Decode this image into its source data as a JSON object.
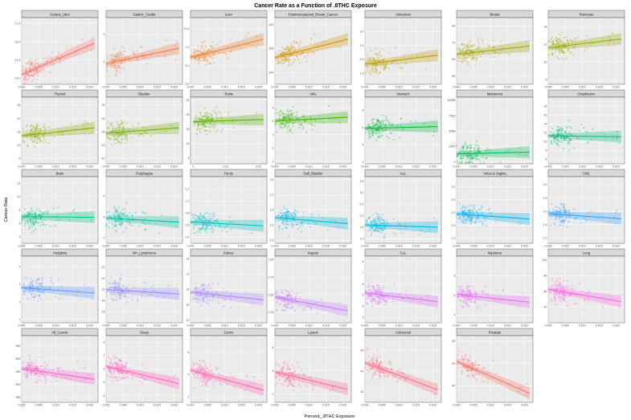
{
  "chart_data": {
    "type": "scatter",
    "title": "Cancer Rate as a Function of .8THC Exposure",
    "xlabel": "Percent_.8THC Exposure",
    "ylabel": "Cancer Rate",
    "grid": true,
    "panels": [
      {
        "name": "Corpus_Uteri",
        "color": "#F8766D",
        "xlim": [
          0,
          0.0225
        ],
        "xticks": [
          "0.000",
          "0.005",
          "0.010",
          "0.015",
          "0.020"
        ],
        "ylim": [
          12.5,
          18
        ],
        "yticks": [
          13,
          14.5,
          16,
          17.5
        ],
        "yticklabels": [
          "13.0",
          "14.5",
          "16.0",
          "17.5"
        ],
        "fit": [
          13.3,
          15.9
        ]
      },
      {
        "name": "Gastric_Cardia",
        "color": "#F27C4C",
        "xlim": [
          0,
          0.0225
        ],
        "xticks": [
          "0.000",
          "0.005",
          "0.010",
          "0.015",
          "0.020"
        ],
        "ylim": [
          1.2,
          3.6
        ],
        "yticks": [
          2,
          3
        ],
        "yticklabels": [
          "2",
          "3"
        ],
        "fit": [
          1.95,
          2.5
        ]
      },
      {
        "name": "Liver",
        "color": "#EA8331",
        "xlim": [
          0,
          0.0225
        ],
        "xticks": [
          "0.000",
          "0.005",
          "0.010",
          "0.015",
          "0.020"
        ],
        "ylim": [
          2.5,
          11.5
        ],
        "yticks": [
          2.5,
          5,
          7.5,
          10
        ],
        "yticklabels": [
          "2.5",
          "5.0",
          "7.5",
          "10.0"
        ],
        "fit": [
          6.1,
          8.6
        ]
      },
      {
        "name": "Postmenopausal_Breast_Cancer",
        "color": "#D89000",
        "xlim": [
          0,
          0.0225
        ],
        "xticks": [
          "0.000",
          "0.005",
          "0.010",
          "0.015",
          "0.020"
        ],
        "ylim": [
          150,
          430
        ],
        "yticks": [
          200,
          300,
          400
        ],
        "yticklabels": [
          "200",
          "300",
          "400"
        ],
        "fit": [
          262,
          340
        ]
      },
      {
        "name": "Atorectum",
        "color": "#C09B00",
        "xlim": [
          0,
          0.0225
        ],
        "xticks": [
          "0.000",
          "0.005",
          "0.010",
          "0.015",
          "0.020"
        ],
        "ylim": [
          1.1,
          3.5
        ],
        "yticks": [
          1.5,
          2,
          2.5,
          3
        ],
        "yticklabels": [
          "1.5",
          "2.0",
          "2.5",
          "3.0"
        ],
        "fit": [
          1.82,
          2.15
        ]
      },
      {
        "name": "Breast",
        "color": "#A3A500",
        "xlim": [
          0,
          0.0225
        ],
        "xticks": [
          "0.000",
          "0.005",
          "0.010",
          "0.015",
          "0.020"
        ],
        "ylim": [
          45,
          85
        ],
        "yticks": [
          50,
          60,
          70,
          80
        ],
        "yticklabels": [
          "50",
          "60",
          "70",
          "80"
        ],
        "fit": [
          63,
          68
        ]
      },
      {
        "name": "Pancreas",
        "color": "#99A800",
        "xlim": [
          0,
          0.0225
        ],
        "xticks": [
          "0.000",
          "0.005",
          "0.010",
          "0.015",
          "0.020"
        ],
        "ylim": [
          7.5,
          15
        ],
        "yticks": [
          8,
          10,
          12,
          14
        ],
        "yticklabels": [
          "8",
          "10",
          "12",
          "14"
        ],
        "fit": [
          11.6,
          12.6
        ]
      },
      {
        "name": "Thyroid",
        "color": "#8EAB00",
        "xlim": [
          0,
          0.0225
        ],
        "xticks": [
          "0.000",
          "0.005",
          "0.010",
          "0.015",
          "0.020"
        ],
        "ylim": [
          3,
          28
        ],
        "yticks": [
          5,
          10,
          15,
          20,
          25
        ],
        "yticklabels": [
          "5",
          "10",
          "15",
          "20",
          "25"
        ],
        "fit": [
          13.5,
          16.5
        ]
      },
      {
        "name": "Bladder",
        "color": "#7CAE00",
        "xlim": [
          0,
          0.0225
        ],
        "xticks": [
          "0.000",
          "0.005",
          "0.010",
          "0.015",
          "0.020"
        ],
        "ylim": [
          8,
          33
        ],
        "yticks": [
          10,
          15,
          20,
          25,
          30
        ],
        "yticklabels": [
          "10",
          "15",
          "20",
          "25",
          "30"
        ],
        "fit": [
          19.5,
          21.5
        ]
      },
      {
        "name": "Testis",
        "color": "#5EB300",
        "xlim": [
          -0.0008,
          0.0225
        ],
        "xticks": [
          "0",
          "0.01",
          "0.02"
        ],
        "xtickvals": [
          0,
          0.01,
          0.02
        ],
        "ylim": [
          3,
          26
        ],
        "yticks": [
          5,
          10,
          15,
          20,
          25
        ],
        "yticklabels": [
          "5",
          "10",
          "15",
          "20",
          "25"
        ],
        "fit": [
          17.5,
          18.3
        ]
      },
      {
        "name": "AML",
        "color": "#39B600",
        "xlim": [
          0,
          0.0225
        ],
        "xticks": [
          "0.000",
          "0.005",
          "0.010",
          "0.015",
          "0.020"
        ],
        "ylim": [
          0.8,
          5.8
        ],
        "yticks": [
          1,
          2,
          3,
          4,
          5
        ],
        "yticklabels": [
          "1",
          "2",
          "3",
          "4",
          "5"
        ],
        "fit": [
          4.0,
          4.3
        ]
      },
      {
        "name": "Stomach",
        "color": "#00BA38",
        "xlim": [
          0,
          0.0225
        ],
        "xticks": [
          "0.000",
          "0.005",
          "0.010",
          "0.015",
          "0.020"
        ],
        "ylim": [
          1.8,
          9.5
        ],
        "yticks": [
          2,
          4,
          6,
          8
        ],
        "yticklabels": [
          "2",
          "4",
          "6",
          "8"
        ],
        "fit": [
          5.9,
          6.1
        ]
      },
      {
        "name": "Melanoma",
        "color": "#00BC56",
        "xlim": [
          0,
          0.0225
        ],
        "xticks": [
          "0.000",
          "0.005",
          "0.010",
          "0.015",
          "0.020"
        ],
        "ylim": [
          -300,
          10500
        ],
        "yticks": [
          0,
          2500,
          5000,
          7500,
          10000
        ],
        "yticklabels": [
          "0",
          "2500",
          "5000",
          "7500",
          "10000"
        ],
        "fit": [
          1300,
          1600
        ]
      },
      {
        "name": "Oropharynx",
        "color": "#00BF7D",
        "xlim": [
          0,
          0.0225
        ],
        "xticks": [
          "0.000",
          "0.005",
          "0.010",
          "0.015",
          "0.020"
        ],
        "ylim": [
          5,
          20
        ],
        "yticks": [
          6,
          8,
          10,
          12,
          14,
          16,
          18
        ],
        "yticklabels": [
          "6",
          "8",
          "10",
          "12",
          "14",
          "16",
          "18"
        ],
        "fit": [
          11.3,
          11.1
        ]
      },
      {
        "name": "Brain",
        "color": "#00C08B",
        "xlim": [
          0,
          0.0225
        ],
        "xticks": [
          "0.000",
          "0.005",
          "0.010",
          "0.015",
          "0.020"
        ],
        "ylim": [
          3,
          13
        ],
        "yticks": [
          4,
          6,
          8,
          10,
          12
        ],
        "yticklabels": [
          "4",
          "6",
          "8",
          "10",
          "12"
        ],
        "fit": [
          7.0,
          6.9
        ]
      },
      {
        "name": "Esophagus",
        "color": "#00C1A3",
        "xlim": [
          0,
          0.0225
        ],
        "xticks": [
          "0.000",
          "0.005",
          "0.010",
          "0.015",
          "0.020"
        ],
        "ylim": [
          1.5,
          7.8
        ],
        "yticks": [
          2,
          4,
          6
        ],
        "yticklabels": [
          "2",
          "4",
          "6"
        ],
        "fit": [
          3.9,
          3.5
        ]
      },
      {
        "name": "Penis",
        "color": "#00BFC4",
        "xlim": [
          0,
          0.0225
        ],
        "xticks": [
          "0.000",
          "0.005",
          "0.010",
          "0.015",
          "0.020"
        ],
        "ylim": [
          0.3,
          1.4
        ],
        "yticks": [
          0.4,
          0.6,
          0.8,
          1,
          1.2
        ],
        "yticklabels": [
          "0.4",
          "0.6",
          "0.8",
          "1.0",
          "1.2"
        ],
        "fit": [
          0.65,
          0.59
        ]
      },
      {
        "name": "Gall_Bladder",
        "color": "#00BBDA",
        "xlim": [
          0,
          0.0225
        ],
        "xticks": [
          "0.000",
          "0.005",
          "0.010",
          "0.015",
          "0.020"
        ],
        "ylim": [
          0.4,
          2.6
        ],
        "yticks": [
          0.5,
          1,
          1.5,
          2,
          2.5
        ],
        "yticklabels": [
          "0.5",
          "1.0",
          "1.5",
          "2.0",
          "2.5"
        ],
        "fit": [
          1.25,
          1.05
        ]
      },
      {
        "name": "ALL",
        "color": "#00B8E7",
        "xlim": [
          0,
          0.0225
        ],
        "xticks": [
          "0.000",
          "0.005",
          "0.010",
          "0.015",
          "0.020"
        ],
        "ylim": [
          0.8,
          3.7
        ],
        "yticks": [
          1,
          1.5,
          2,
          2.5,
          3,
          3.5
        ],
        "yticklabels": [
          "1.0",
          "1.5",
          "2.0",
          "2.5",
          "3.0",
          "3.5"
        ],
        "fit": [
          1.6,
          1.5
        ]
      },
      {
        "name": "Vulva & Vagina",
        "color": "#00B0F6",
        "xlim": [
          0,
          0.0225
        ],
        "xticks": [
          "0.000",
          "0.005",
          "0.010",
          "0.015",
          "0.020"
        ],
        "ylim": [
          0.8,
          3.4
        ],
        "yticks": [
          1,
          1.5,
          2,
          2.5,
          3
        ],
        "yticklabels": [
          "1.0",
          "1.5",
          "2.0",
          "2.5",
          "3.0"
        ],
        "fit": [
          1.95,
          1.75
        ]
      },
      {
        "name": "CML",
        "color": "#35A2FF",
        "xlim": [
          0,
          0.0225
        ],
        "xticks": [
          "0.000",
          "0.005",
          "0.010",
          "0.015",
          "0.020"
        ],
        "ylim": [
          0.8,
          3.3
        ],
        "yticks": [
          1,
          1.5,
          2,
          2.5,
          3
        ],
        "yticklabels": [
          "1.0",
          "1.5",
          "2.0",
          "2.5",
          "3.0"
        ],
        "fit": [
          1.92,
          1.72
        ]
      },
      {
        "name": "Hodgkins",
        "color": "#619CFF",
        "xlim": [
          0,
          0.0225
        ],
        "xticks": [
          "0.000",
          "0.005",
          "0.010",
          "0.015",
          "0.020"
        ],
        "ylim": [
          0.8,
          4.6
        ],
        "yticks": [
          1,
          2,
          3,
          4
        ],
        "yticklabels": [
          "1",
          "2",
          "3",
          "4"
        ],
        "fit": [
          2.8,
          2.5
        ]
      },
      {
        "name": "NH_Lymphoma",
        "color": "#9590FF",
        "xlim": [
          0,
          0.0225
        ],
        "xticks": [
          "0.000",
          "0.005",
          "0.010",
          "0.015",
          "0.020"
        ],
        "ylim": [
          12,
          24
        ],
        "yticks": [
          14,
          16,
          18,
          20,
          22
        ],
        "yticklabels": [
          "14",
          "16",
          "18",
          "20",
          "22"
        ],
        "fit": [
          18.0,
          17.2
        ]
      },
      {
        "name": "Kidney",
        "color": "#AD88FF",
        "xlim": [
          0,
          0.0225
        ],
        "xticks": [
          "0.000",
          "0.005",
          "0.010",
          "0.015",
          "0.020"
        ],
        "ylim": [
          11.5,
          24.5
        ],
        "yticks": [
          12,
          15,
          18,
          21,
          24
        ],
        "yticklabels": [
          "12",
          "15",
          "18",
          "21",
          "24"
        ],
        "fit": [
          17.5,
          16.0
        ]
      },
      {
        "name": "Kaposi",
        "color": "#C77CFF",
        "xlim": [
          0,
          0.0225
        ],
        "xticks": [
          "0.000",
          "0.005",
          "0.010",
          "0.015",
          "0.020"
        ],
        "ylim": [
          0.1,
          1.05
        ],
        "yticks": [
          0.25,
          0.5,
          0.75,
          1
        ],
        "yticklabels": [
          "0.25",
          "0.50",
          "0.75",
          "1.00"
        ],
        "fit": [
          0.47,
          0.27
        ]
      },
      {
        "name": "CLL",
        "color": "#DC71FA",
        "xlim": [
          0,
          0.0225
        ],
        "xticks": [
          "0.000",
          "0.005",
          "0.010",
          "0.015",
          "0.020"
        ],
        "ylim": [
          2.5,
          8.5
        ],
        "yticks": [
          3,
          4,
          5,
          6,
          7,
          8
        ],
        "yticklabels": [
          "3",
          "4",
          "5",
          "6",
          "7",
          "8"
        ],
        "fit": [
          5.2,
          4.4
        ]
      },
      {
        "name": "Myeloma",
        "color": "#E76BF3",
        "xlim": [
          0,
          0.0225
        ],
        "xticks": [
          "0.000",
          "0.005",
          "0.010",
          "0.015",
          "0.020"
        ],
        "ylim": [
          3.2,
          10
        ],
        "yticks": [
          4,
          6,
          8
        ],
        "yticklabels": [
          "4",
          "6",
          "8"
        ],
        "fit": [
          6.1,
          5.3
        ]
      },
      {
        "name": "Lung",
        "color": "#F564E3",
        "xlim": [
          0,
          0.0225
        ],
        "xticks": [
          "0.000",
          "0.005",
          "0.010",
          "0.015",
          "0.020"
        ],
        "ylim": [
          20,
          105
        ],
        "yticks": [
          40,
          60,
          80,
          100
        ],
        "yticklabels": [
          "40",
          "60",
          "80",
          "100"
        ],
        "fit": [
          63,
          47
        ]
      },
      {
        "name": "All_Cancer",
        "color": "#FD61D1",
        "xlim": [
          0,
          0.0225
        ],
        "xticks": [
          "0.000",
          "0.005",
          "0.010",
          "0.015",
          "0.020"
        ],
        "ylim": [
          330,
          590
        ],
        "yticks": [
          350,
          400,
          450,
          500,
          550
        ],
        "yticklabels": [
          "350",
          "400",
          "450",
          "500",
          "550"
        ],
        "fit": [
          462,
          420
        ]
      },
      {
        "name": "Ovary",
        "color": "#FF62BC",
        "xlim": [
          0,
          0.0225
        ],
        "xticks": [
          "0.000",
          "0.005",
          "0.010",
          "0.015",
          "0.020"
        ],
        "ylim": [
          3.5,
          8.5
        ],
        "yticks": [
          4,
          5,
          6,
          7,
          8
        ],
        "yticklabels": [
          "4",
          "5",
          "6",
          "7",
          "8"
        ],
        "fit": [
          6.2,
          4.9
        ]
      },
      {
        "name": "Cervix",
        "color": "#FF65AE",
        "xlim": [
          0,
          0.0225
        ],
        "xticks": [
          "0.000",
          "0.005",
          "0.010",
          "0.015",
          "0.020"
        ],
        "ylim": [
          1.5,
          7.5
        ],
        "yticks": [
          2,
          4,
          6
        ],
        "yticklabels": [
          "2",
          "4",
          "6"
        ],
        "fit": [
          4.4,
          2.6
        ]
      },
      {
        "name": "Larynx",
        "color": "#FF6A98",
        "xlim": [
          0,
          0.0225
        ],
        "xticks": [
          "0.000",
          "0.005",
          "0.010",
          "0.015",
          "0.020"
        ],
        "ylim": [
          1.3,
          7
        ],
        "yticks": [
          2,
          4,
          6
        ],
        "yticklabels": [
          "2",
          "4",
          "6"
        ],
        "fit": [
          3.9,
          2.4
        ]
      },
      {
        "name": "Colorectal",
        "color": "#FD6F86",
        "xlim": [
          0,
          0.0225
        ],
        "xticks": [
          "0.000",
          "0.005",
          "0.010",
          "0.015",
          "0.020"
        ],
        "ylim": [
          25,
          57
        ],
        "yticks": [
          30,
          40,
          50
        ],
        "yticklabels": [
          "30",
          "40",
          "50"
        ],
        "fit": [
          44,
          31
        ]
      },
      {
        "name": "Prostate",
        "color": "#F8766D",
        "xlim": [
          0,
          0.0225
        ],
        "xticks": [
          "0.000",
          "0.005",
          "0.010",
          "0.015",
          "0.020"
        ],
        "ylim": [
          25,
          85
        ],
        "yticks": [
          40,
          60,
          80
        ],
        "yticklabels": [
          "40",
          "60",
          "80"
        ],
        "fit": [
          62,
          33
        ]
      }
    ]
  }
}
